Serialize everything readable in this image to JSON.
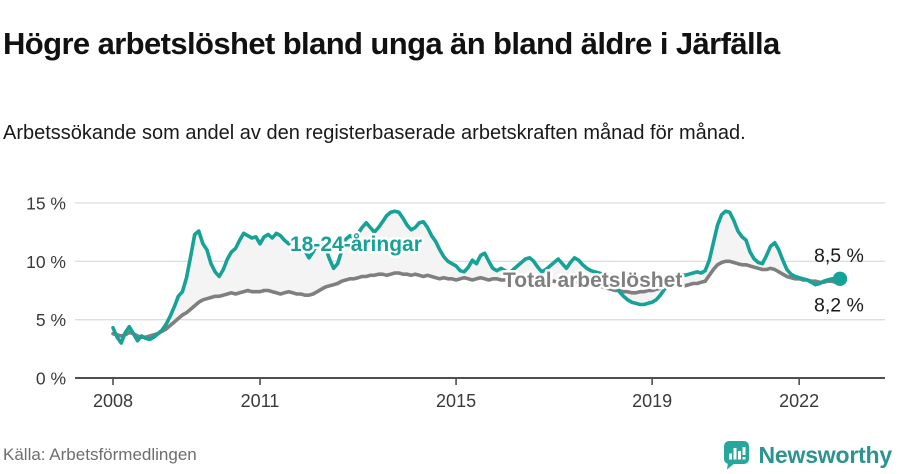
{
  "header": {
    "title": "Högre arbetslöshet bland unga än bland äldre i Järfälla",
    "subtitle": "Arbetssökande som andel av den registerbaserade arbetskraften månad för månad."
  },
  "chart_data": {
    "type": "line",
    "title": "Högre arbetslöshet bland unga än bland äldre i Järfälla",
    "unit": "%",
    "x_period": {
      "start": "2008-01",
      "end": "2022-11",
      "frequency": "monthly"
    },
    "x_ticks": [
      {
        "label": "2008",
        "month_index": 0
      },
      {
        "label": "2011",
        "month_index": 36
      },
      {
        "label": "2015",
        "month_index": 84
      },
      {
        "label": "2019",
        "month_index": 132
      },
      {
        "label": "2022",
        "month_index": 168
      }
    ],
    "y_ticks": [
      {
        "label": "0 %",
        "value": 0
      },
      {
        "label": "5 %",
        "value": 5
      },
      {
        "label": "10 %",
        "value": 10
      },
      {
        "label": "15 %",
        "value": 15
      }
    ],
    "ylim": [
      0,
      15.8
    ],
    "grid_on": true,
    "grid_color": "#dedede",
    "axis_color": "#4f4f4f",
    "tick_label_color": "#3a3a3a",
    "fill_between_color": "#f4f4f4",
    "end_label_color": "#1a1a1a",
    "legend_position": "inline-labels",
    "series": [
      {
        "name": "18-24-åringar",
        "color": "#16a296",
        "end_label": "8,5 %",
        "end_dot": true,
        "values": [
          4.3,
          3.5,
          3.0,
          3.9,
          4.4,
          3.8,
          3.2,
          3.6,
          3.4,
          3.3,
          3.5,
          3.8,
          4.1,
          4.6,
          5.3,
          6.1,
          7.0,
          7.4,
          8.6,
          10.4,
          12.3,
          12.6,
          11.5,
          11.0,
          9.8,
          9.1,
          8.7,
          9.3,
          10.2,
          10.8,
          11.1,
          11.8,
          12.4,
          12.2,
          12.0,
          12.1,
          11.5,
          12.1,
          12.3,
          12.0,
          12.4,
          12.2,
          11.8,
          11.5,
          11.9,
          11.6,
          11.2,
          10.9,
          10.3,
          10.8,
          11.5,
          11.7,
          11.2,
          10.2,
          9.4,
          9.8,
          10.9,
          11.9,
          12.2,
          12.0,
          12.4,
          12.9,
          13.3,
          12.9,
          12.5,
          12.9,
          13.4,
          13.9,
          14.2,
          14.3,
          14.2,
          13.7,
          13.1,
          12.7,
          12.9,
          13.3,
          13.4,
          12.9,
          12.2,
          11.7,
          11.0,
          10.4,
          10.0,
          9.8,
          9.6,
          9.2,
          9.1,
          9.5,
          10.1,
          9.8,
          10.5,
          10.7,
          10.0,
          9.4,
          9.2,
          9.4,
          9.2,
          9.0,
          9.3,
          9.6,
          9.9,
          10.2,
          10.3,
          10.0,
          9.5,
          9.1,
          9.3,
          9.6,
          9.9,
          10.2,
          9.8,
          9.4,
          9.9,
          10.3,
          10.1,
          9.7,
          9.4,
          9.2,
          9.1,
          9.0,
          8.9,
          8.6,
          8.2,
          7.8,
          7.4,
          7.0,
          6.7,
          6.5,
          6.4,
          6.3,
          6.3,
          6.4,
          6.5,
          6.7,
          7.1,
          7.6,
          8.1,
          8.5,
          8.8,
          8.9,
          8.8,
          8.9,
          9.0,
          9.1,
          9.0,
          9.2,
          10.1,
          11.6,
          13.1,
          14.0,
          14.3,
          14.2,
          13.5,
          12.6,
          12.1,
          11.8,
          10.8,
          10.2,
          9.9,
          9.8,
          10.5,
          11.3,
          11.6,
          11.0,
          10.1,
          9.3,
          8.9,
          8.7,
          8.6,
          8.5,
          8.4,
          8.2,
          8.0,
          8.1,
          8.3,
          8.4,
          8.5,
          8.5,
          8.5
        ]
      },
      {
        "name": "Total arbetslöshet",
        "color": "#7f7f7f",
        "end_label": "8,2 %",
        "end_dot": false,
        "values": [
          3.8,
          3.7,
          3.6,
          3.7,
          3.9,
          3.8,
          3.6,
          3.5,
          3.5,
          3.6,
          3.7,
          3.8,
          4.0,
          4.2,
          4.5,
          4.8,
          5.1,
          5.4,
          5.6,
          5.9,
          6.2,
          6.5,
          6.7,
          6.8,
          6.9,
          7.0,
          7.0,
          7.1,
          7.2,
          7.3,
          7.2,
          7.3,
          7.4,
          7.5,
          7.4,
          7.4,
          7.4,
          7.5,
          7.5,
          7.4,
          7.3,
          7.2,
          7.3,
          7.4,
          7.3,
          7.2,
          7.2,
          7.1,
          7.1,
          7.2,
          7.4,
          7.6,
          7.8,
          7.9,
          8.0,
          8.1,
          8.3,
          8.4,
          8.5,
          8.5,
          8.6,
          8.7,
          8.7,
          8.8,
          8.8,
          8.9,
          8.9,
          8.8,
          8.9,
          9.0,
          9.0,
          8.9,
          8.9,
          8.8,
          8.9,
          8.8,
          8.7,
          8.8,
          8.7,
          8.6,
          8.5,
          8.6,
          8.5,
          8.5,
          8.4,
          8.5,
          8.6,
          8.5,
          8.4,
          8.5,
          8.6,
          8.5,
          8.4,
          8.5,
          8.5,
          8.4,
          8.4,
          8.5,
          8.5,
          8.4,
          8.3,
          8.4,
          8.5,
          8.4,
          8.3,
          8.3,
          8.4,
          8.3,
          8.3,
          8.2,
          8.2,
          8.1,
          8.1,
          8.2,
          8.2,
          8.1,
          8.0,
          8.0,
          7.9,
          7.9,
          7.8,
          7.7,
          7.6,
          7.5,
          7.5,
          7.4,
          7.4,
          7.3,
          7.3,
          7.4,
          7.4,
          7.5,
          7.5,
          7.6,
          7.7,
          7.8,
          7.8,
          7.9,
          8.0,
          8.0,
          7.9,
          8.0,
          8.1,
          8.1,
          8.2,
          8.3,
          8.8,
          9.3,
          9.7,
          9.9,
          10.0,
          10.0,
          9.9,
          9.8,
          9.7,
          9.7,
          9.6,
          9.5,
          9.4,
          9.3,
          9.3,
          9.4,
          9.3,
          9.1,
          8.9,
          8.7,
          8.6,
          8.5,
          8.5,
          8.4,
          8.4,
          8.3,
          8.3,
          8.2,
          8.2,
          8.3,
          8.3,
          8.2,
          8.2
        ]
      }
    ]
  },
  "footer": {
    "source": "Källa: Arbetsförmedlingen",
    "brand_name": "Newsworthy",
    "brand_color": "#2b9390",
    "brand_icon": "newsworthy-pin-barchart-icon",
    "brand_icon_color": "#27a69b"
  }
}
